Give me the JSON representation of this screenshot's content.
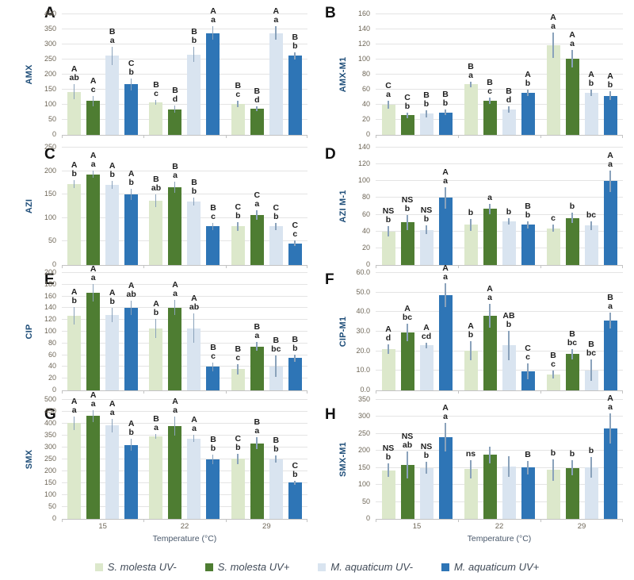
{
  "x_axis": {
    "title": "Temperature (°C)",
    "categories": [
      "15",
      "22",
      "29"
    ]
  },
  "legend": {
    "items": [
      {
        "label": "S. molesta UV-",
        "color": "#dce8cb"
      },
      {
        "label": "S. molesta UV+",
        "color": "#4e7d32"
      },
      {
        "label": "M. aquaticum UV-",
        "color": "#d9e4f0"
      },
      {
        "label": "M. aquaticum UV+",
        "color": "#2e75b6"
      }
    ]
  },
  "colors": {
    "error_bar": "#8aa2bb",
    "gridline": "#e4e4e4",
    "axis_line": "#c3c3c3",
    "tick_text": "#6e6657",
    "axis_title_text": "#1f4e79",
    "sig_text": "#1f1f1f",
    "x_title_text": "#49586b",
    "legend_text": "#404a57",
    "panel_letter": "#111111"
  },
  "chart_data": {
    "type": "bar",
    "series_names": [
      "S. molesta UV-",
      "S. molesta UV+",
      "M. aquaticum UV-",
      "M. aquaticum UV+"
    ],
    "categories": [
      "15",
      "22",
      "29"
    ],
    "xlabel": "Temperature (°C)",
    "grid": true,
    "legend_position": "bottom",
    "panels": [
      {
        "panel": "A",
        "ylabel": "AMX",
        "ymax": 400,
        "ystep": 50,
        "decimals": 0,
        "show_x": false,
        "groups": [
          {
            "category": "15",
            "bars": [
              {
                "value": 143,
                "error": 25,
                "sig_upper": "A",
                "sig_lower": "ab"
              },
              {
                "value": 112,
                "error": 18,
                "sig_upper": "A",
                "sig_lower": "c"
              },
              {
                "value": 262,
                "error": 30,
                "sig_upper": "B",
                "sig_lower": "a"
              },
              {
                "value": 168,
                "error": 20,
                "sig_upper": "C",
                "sig_lower": "b"
              }
            ]
          },
          {
            "category": "22",
            "bars": [
              {
                "value": 107,
                "error": 8,
                "sig_upper": "B",
                "sig_lower": "c"
              },
              {
                "value": 85,
                "error": 12,
                "sig_upper": "B",
                "sig_lower": "d"
              },
              {
                "value": 267,
                "error": 25,
                "sig_upper": "B",
                "sig_lower": "b"
              },
              {
                "value": 338,
                "error": 22,
                "sig_upper": "A",
                "sig_lower": "a"
              }
            ]
          },
          {
            "category": "29",
            "bars": [
              {
                "value": 103,
                "error": 10,
                "sig_upper": "B",
                "sig_lower": "c"
              },
              {
                "value": 87,
                "error": 8,
                "sig_upper": "B",
                "sig_lower": "d"
              },
              {
                "value": 338,
                "error": 22,
                "sig_upper": "A",
                "sig_lower": "a"
              },
              {
                "value": 263,
                "error": 12,
                "sig_upper": "B",
                "sig_lower": "b"
              }
            ]
          }
        ]
      },
      {
        "panel": "B",
        "ylabel": "AMX-M1",
        "ymax": 160,
        "ystep": 20,
        "decimals": 0,
        "show_x": false,
        "groups": [
          {
            "category": "15",
            "bars": [
              {
                "value": 40,
                "error": 5,
                "sig_upper": "C",
                "sig_lower": "a"
              },
              {
                "value": 26,
                "error": 4,
                "sig_upper": "C",
                "sig_lower": "b"
              },
              {
                "value": 28,
                "error": 5,
                "sig_upper": "B",
                "sig_lower": "b"
              },
              {
                "value": 30,
                "error": 4,
                "sig_upper": "B",
                "sig_lower": "b"
              }
            ]
          },
          {
            "category": "22",
            "bars": [
              {
                "value": 67,
                "error": 4,
                "sig_upper": "B",
                "sig_lower": "a"
              },
              {
                "value": 45,
                "error": 4,
                "sig_upper": "B",
                "sig_lower": "c"
              },
              {
                "value": 34,
                "error": 4,
                "sig_upper": "B",
                "sig_lower": "d"
              },
              {
                "value": 56,
                "error": 4,
                "sig_upper": "A",
                "sig_lower": "b"
              }
            ]
          },
          {
            "category": "29",
            "bars": [
              {
                "value": 119,
                "error": 17,
                "sig_upper": "A",
                "sig_lower": "a"
              },
              {
                "value": 101,
                "error": 12,
                "sig_upper": "A",
                "sig_lower": "a"
              },
              {
                "value": 56,
                "error": 4,
                "sig_upper": "A",
                "sig_lower": "b"
              },
              {
                "value": 52,
                "error": 6,
                "sig_upper": "A",
                "sig_lower": "b"
              }
            ]
          }
        ]
      },
      {
        "panel": "C",
        "ylabel": "AZI",
        "ymax": 250,
        "ystep": 50,
        "decimals": 0,
        "show_x": false,
        "groups": [
          {
            "category": "15",
            "bars": [
              {
                "value": 172,
                "error": 8,
                "sig_upper": "A",
                "sig_lower": "b"
              },
              {
                "value": 193,
                "error": 8,
                "sig_upper": "A",
                "sig_lower": "a"
              },
              {
                "value": 171,
                "error": 8,
                "sig_upper": "A",
                "sig_lower": "b"
              },
              {
                "value": 151,
                "error": 12,
                "sig_upper": "A",
                "sig_lower": "b"
              }
            ]
          },
          {
            "category": "22",
            "bars": [
              {
                "value": 137,
                "error": 14,
                "sig_upper": "B",
                "sig_lower": "ab"
              },
              {
                "value": 165,
                "error": 12,
                "sig_upper": "B",
                "sig_lower": "a"
              },
              {
                "value": 135,
                "error": 8,
                "sig_upper": "B",
                "sig_lower": "b"
              },
              {
                "value": 82,
                "error": 8,
                "sig_upper": "B",
                "sig_lower": "c"
              }
            ]
          },
          {
            "category": "29",
            "bars": [
              {
                "value": 82,
                "error": 10,
                "sig_upper": "C",
                "sig_lower": "b"
              },
              {
                "value": 107,
                "error": 10,
                "sig_upper": "C",
                "sig_lower": "a"
              },
              {
                "value": 82,
                "error": 8,
                "sig_upper": "C",
                "sig_lower": "b"
              },
              {
                "value": 46,
                "error": 6,
                "sig_upper": "C",
                "sig_lower": "c"
              }
            ]
          }
        ]
      },
      {
        "panel": "D",
        "ylabel": "AZI M-1",
        "ymax": 140,
        "ystep": 20,
        "decimals": 0,
        "show_x": false,
        "groups": [
          {
            "category": "15",
            "bars": [
              {
                "value": 40,
                "error": 6,
                "sig_upper": "NS",
                "sig_lower": "b"
              },
              {
                "value": 51,
                "error": 9,
                "sig_upper": "NS",
                "sig_lower": "b"
              },
              {
                "value": 42,
                "error": 5,
                "sig_upper": "NS",
                "sig_lower": "b"
              },
              {
                "value": 80,
                "error": 13,
                "sig_upper": "A",
                "sig_lower": "a"
              }
            ]
          },
          {
            "category": "22",
            "bars": [
              {
                "value": 48,
                "error": 7,
                "sig_upper": "",
                "sig_lower": "b"
              },
              {
                "value": 67,
                "error": 6,
                "sig_upper": "",
                "sig_lower": "a"
              },
              {
                "value": 52,
                "error": 4,
                "sig_upper": "",
                "sig_lower": "b"
              },
              {
                "value": 48,
                "error": 4,
                "sig_upper": "B",
                "sig_lower": "b"
              }
            ]
          },
          {
            "category": "29",
            "bars": [
              {
                "value": 44,
                "error": 4,
                "sig_upper": "",
                "sig_lower": "c"
              },
              {
                "value": 56,
                "error": 6,
                "sig_upper": "",
                "sig_lower": "b"
              },
              {
                "value": 47,
                "error": 5,
                "sig_upper": "",
                "sig_lower": "bc"
              },
              {
                "value": 100,
                "error": 13,
                "sig_upper": "A",
                "sig_lower": "a"
              }
            ]
          }
        ]
      },
      {
        "panel": "E",
        "ylabel": "CIP",
        "ymax": 200,
        "ystep": 20,
        "decimals": 0,
        "show_x": false,
        "groups": [
          {
            "category": "15",
            "bars": [
              {
                "value": 127,
                "error": 15,
                "sig_upper": "A",
                "sig_lower": "b"
              },
              {
                "value": 166,
                "error": 15,
                "sig_upper": "A",
                "sig_lower": "a"
              },
              {
                "value": 128,
                "error": 12,
                "sig_upper": "A",
                "sig_lower": "b"
              },
              {
                "value": 141,
                "error": 12,
                "sig_upper": "A",
                "sig_lower": "ab"
              }
            ]
          },
          {
            "category": "22",
            "bars": [
              {
                "value": 105,
                "error": 16,
                "sig_upper": "A",
                "sig_lower": "b"
              },
              {
                "value": 141,
                "error": 13,
                "sig_upper": "A",
                "sig_lower": "a"
              },
              {
                "value": 106,
                "error": 25,
                "sig_upper": "A",
                "sig_lower": "ab"
              },
              {
                "value": 40,
                "error": 7,
                "sig_upper": "B",
                "sig_lower": "c"
              }
            ]
          },
          {
            "category": "29",
            "bars": [
              {
                "value": 36,
                "error": 9,
                "sig_upper": "B",
                "sig_lower": "c"
              },
              {
                "value": 75,
                "error": 7,
                "sig_upper": "B",
                "sig_lower": "a"
              },
              {
                "value": 41,
                "error": 18,
                "sig_upper": "B",
                "sig_lower": "bc"
              },
              {
                "value": 55,
                "error": 6,
                "sig_upper": "B",
                "sig_lower": "b"
              }
            ]
          }
        ]
      },
      {
        "panel": "F",
        "ylabel": "CIP-M1",
        "ymax": 60,
        "ystep": 10,
        "decimals": 1,
        "show_x": false,
        "groups": [
          {
            "category": "15",
            "bars": [
              {
                "value": 21,
                "error": 2.5,
                "sig_upper": "A",
                "sig_lower": "d"
              },
              {
                "value": 29.5,
                "error": 4.5,
                "sig_upper": "A",
                "sig_lower": "bc"
              },
              {
                "value": 23,
                "error": 1.5,
                "sig_upper": "A",
                "sig_lower": "cd"
              },
              {
                "value": 48.7,
                "error": 6,
                "sig_upper": "A",
                "sig_lower": "a"
              }
            ]
          },
          {
            "category": "22",
            "bars": [
              {
                "value": 20.3,
                "error": 5,
                "sig_upper": "A",
                "sig_lower": "b"
              },
              {
                "value": 38,
                "error": 6,
                "sig_upper": "A",
                "sig_lower": "a"
              },
              {
                "value": 23,
                "error": 7.5,
                "sig_upper": "AB",
                "sig_lower": "b"
              },
              {
                "value": 9.8,
                "error": 4,
                "sig_upper": "C",
                "sig_lower": "c"
              }
            ]
          },
          {
            "category": "29",
            "bars": [
              {
                "value": 8,
                "error": 2,
                "sig_upper": "B",
                "sig_lower": "c"
              },
              {
                "value": 18.5,
                "error": 2.5,
                "sig_upper": "B",
                "sig_lower": "bc"
              },
              {
                "value": 10.2,
                "error": 5.5,
                "sig_upper": "B",
                "sig_lower": "bc"
              },
              {
                "value": 35.8,
                "error": 4,
                "sig_upper": "B",
                "sig_lower": "a"
              }
            ]
          }
        ]
      },
      {
        "panel": "G",
        "ylabel": "SMX",
        "ymax": 500,
        "ystep": 50,
        "decimals": 0,
        "show_x": true,
        "groups": [
          {
            "category": "15",
            "bars": [
              {
                "value": 402,
                "error": 28,
                "sig_upper": "A",
                "sig_lower": "a"
              },
              {
                "value": 432,
                "error": 25,
                "sig_upper": "A",
                "sig_lower": "a"
              },
              {
                "value": 393,
                "error": 28,
                "sig_upper": "A",
                "sig_lower": "a"
              },
              {
                "value": 311,
                "error": 25,
                "sig_upper": "A",
                "sig_lower": "b"
              }
            ]
          },
          {
            "category": "22",
            "bars": [
              {
                "value": 348,
                "error": 10,
                "sig_upper": "B",
                "sig_lower": "a"
              },
              {
                "value": 390,
                "error": 40,
                "sig_upper": "A",
                "sig_lower": "a"
              },
              {
                "value": 338,
                "error": 15,
                "sig_upper": "A",
                "sig_lower": "a"
              },
              {
                "value": 250,
                "error": 20,
                "sig_upper": "B",
                "sig_lower": "b"
              }
            ]
          },
          {
            "category": "29",
            "bars": [
              {
                "value": 252,
                "error": 22,
                "sig_upper": "C",
                "sig_lower": "b"
              },
              {
                "value": 317,
                "error": 25,
                "sig_upper": "B",
                "sig_lower": "a"
              },
              {
                "value": 251,
                "error": 15,
                "sig_upper": "B",
                "sig_lower": "b"
              },
              {
                "value": 152,
                "error": 8,
                "sig_upper": "C",
                "sig_lower": "b"
              }
            ]
          }
        ]
      },
      {
        "panel": "H",
        "ylabel": "SMX-M1",
        "ymax": 350,
        "ystep": 50,
        "decimals": 0,
        "show_x": true,
        "groups": [
          {
            "category": "15",
            "bars": [
              {
                "value": 143,
                "error": 20,
                "sig_upper": "NS",
                "sig_lower": "b"
              },
              {
                "value": 158,
                "error": 40,
                "sig_upper": "NS",
                "sig_lower": "ab"
              },
              {
                "value": 150,
                "error": 18,
                "sig_upper": "NS",
                "sig_lower": "b"
              },
              {
                "value": 241,
                "error": 42,
                "sig_upper": "A",
                "sig_lower": "a"
              }
            ]
          },
          {
            "category": "22",
            "bars": [
              {
                "value": 146,
                "error": 26,
                "sig_upper": "ns",
                "sig_lower": ""
              },
              {
                "value": 188,
                "error": 25,
                "sig_upper": "",
                "sig_lower": ""
              },
              {
                "value": 154,
                "error": 30,
                "sig_upper": "",
                "sig_lower": ""
              },
              {
                "value": 151,
                "error": 20,
                "sig_upper": "B",
                "sig_lower": ""
              }
            ]
          },
          {
            "category": "29",
            "bars": [
              {
                "value": 144,
                "error": 32,
                "sig_upper": "",
                "sig_lower": "b"
              },
              {
                "value": 150,
                "error": 22,
                "sig_upper": "",
                "sig_lower": "b"
              },
              {
                "value": 151,
                "error": 30,
                "sig_upper": "",
                "sig_lower": "b"
              },
              {
                "value": 266,
                "error": 45,
                "sig_upper": "A",
                "sig_lower": "a"
              }
            ]
          }
        ]
      }
    ]
  }
}
